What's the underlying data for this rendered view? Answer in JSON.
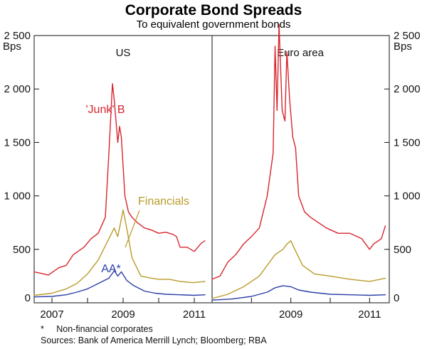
{
  "title": "Corporate Bond Spreads",
  "subtitle": "To equivalent government bonds",
  "unit_left": "Bps",
  "unit_right": "Bps",
  "footnotes": [
    "*     Non-financial corporates",
    "Sources: Bank of America Merrill Lynch; Bloomberg; RBA"
  ],
  "colors": {
    "junk": "#d7262e",
    "financials": "#b89b2a",
    "aa": "#2a3fa8",
    "axis": "#111111"
  },
  "chart_data": [
    {
      "type": "line",
      "panel_title": "US",
      "xlim": [
        2006.5,
        2011.5
      ],
      "ylim": [
        0,
        2500
      ],
      "x_ticks": [
        2007,
        2009,
        2011
      ],
      "y_ticks": [
        0,
        500,
        1000,
        1500,
        2000,
        2500
      ],
      "y_tick_labels": [
        "0",
        "500",
        "1 000",
        "1 500",
        "2 000",
        "2 500"
      ],
      "series": [
        {
          "name": "'Junk' B",
          "key": "junk",
          "x": [
            2006.5,
            2006.9,
            2007.2,
            2007.4,
            2007.6,
            2007.9,
            2008.1,
            2008.3,
            2008.5,
            2008.6,
            2008.7,
            2008.75,
            2008.8,
            2008.85,
            2008.9,
            2008.95,
            2009.05,
            2009.15,
            2009.25,
            2009.4,
            2009.6,
            2009.8,
            2010.0,
            2010.2,
            2010.4,
            2010.5,
            2010.6,
            2010.8,
            2011.0,
            2011.2,
            2011.3
          ],
          "y": [
            290,
            260,
            330,
            350,
            450,
            520,
            600,
            650,
            800,
            1400,
            2050,
            1900,
            1700,
            1500,
            1650,
            1550,
            1000,
            850,
            800,
            750,
            700,
            680,
            650,
            660,
            640,
            620,
            520,
            520,
            480,
            560,
            580
          ]
        },
        {
          "name": "Financials",
          "key": "financials",
          "x": [
            2006.5,
            2007.0,
            2007.4,
            2007.7,
            2008.0,
            2008.3,
            2008.6,
            2008.75,
            2008.85,
            2008.9,
            2009.0,
            2009.1,
            2009.25,
            2009.5,
            2009.8,
            2010.0,
            2010.3,
            2010.6,
            2010.9,
            2011.0,
            2011.3
          ],
          "y": [
            70,
            90,
            130,
            180,
            270,
            400,
            600,
            700,
            620,
            700,
            870,
            700,
            420,
            250,
            230,
            220,
            220,
            200,
            190,
            190,
            200
          ]
        },
        {
          "name": "AA*",
          "key": "aa",
          "x": [
            2006.5,
            2007.0,
            2007.4,
            2007.7,
            2008.0,
            2008.3,
            2008.6,
            2008.75,
            2008.85,
            2008.95,
            2009.1,
            2009.3,
            2009.6,
            2009.9,
            2010.2,
            2010.6,
            2011.0,
            2011.3
          ],
          "y": [
            55,
            60,
            75,
            100,
            130,
            180,
            230,
            300,
            250,
            290,
            210,
            160,
            110,
            90,
            80,
            75,
            70,
            75
          ]
        }
      ]
    },
    {
      "type": "line",
      "panel_title": "Euro area",
      "xlim": [
        2007.0,
        2011.5
      ],
      "ylim": [
        0,
        2500
      ],
      "x_ticks": [
        2009,
        2011
      ],
      "y_ticks": [
        0,
        500,
        1000,
        1500,
        2000,
        2500
      ],
      "y_tick_labels": [
        "0",
        "500",
        "1 000",
        "1 500",
        "2 000",
        "2 500"
      ],
      "series": [
        {
          "name": "",
          "key": "junk",
          "x": [
            2007.0,
            2007.2,
            2007.4,
            2007.6,
            2007.8,
            2008.0,
            2008.2,
            2008.4,
            2008.55,
            2008.6,
            2008.65,
            2008.7,
            2008.78,
            2008.85,
            2008.9,
            2008.97,
            2009.05,
            2009.12,
            2009.2,
            2009.35,
            2009.5,
            2009.7,
            2009.9,
            2010.2,
            2010.5,
            2010.8,
            2011.0,
            2011.1,
            2011.3,
            2011.4
          ],
          "y": [
            220,
            250,
            380,
            450,
            550,
            620,
            700,
            1000,
            1400,
            2400,
            1800,
            2600,
            1800,
            1700,
            2350,
            1900,
            1550,
            1450,
            1000,
            850,
            800,
            750,
            700,
            650,
            650,
            600,
            500,
            550,
            600,
            720
          ]
        },
        {
          "name": "",
          "key": "financials",
          "x": [
            2007.0,
            2007.4,
            2007.8,
            2008.2,
            2008.6,
            2008.8,
            2008.9,
            2009.0,
            2009.1,
            2009.3,
            2009.6,
            2010.0,
            2010.5,
            2011.0,
            2011.4
          ],
          "y": [
            40,
            80,
            150,
            250,
            450,
            500,
            550,
            580,
            500,
            350,
            270,
            250,
            220,
            200,
            230
          ]
        },
        {
          "name": "",
          "key": "aa",
          "x": [
            2007.0,
            2007.5,
            2008.0,
            2008.4,
            2008.6,
            2008.8,
            2009.0,
            2009.2,
            2009.5,
            2010.0,
            2010.5,
            2011.0,
            2011.4
          ],
          "y": [
            25,
            35,
            60,
            100,
            140,
            160,
            150,
            120,
            100,
            80,
            75,
            70,
            75
          ]
        }
      ]
    }
  ]
}
